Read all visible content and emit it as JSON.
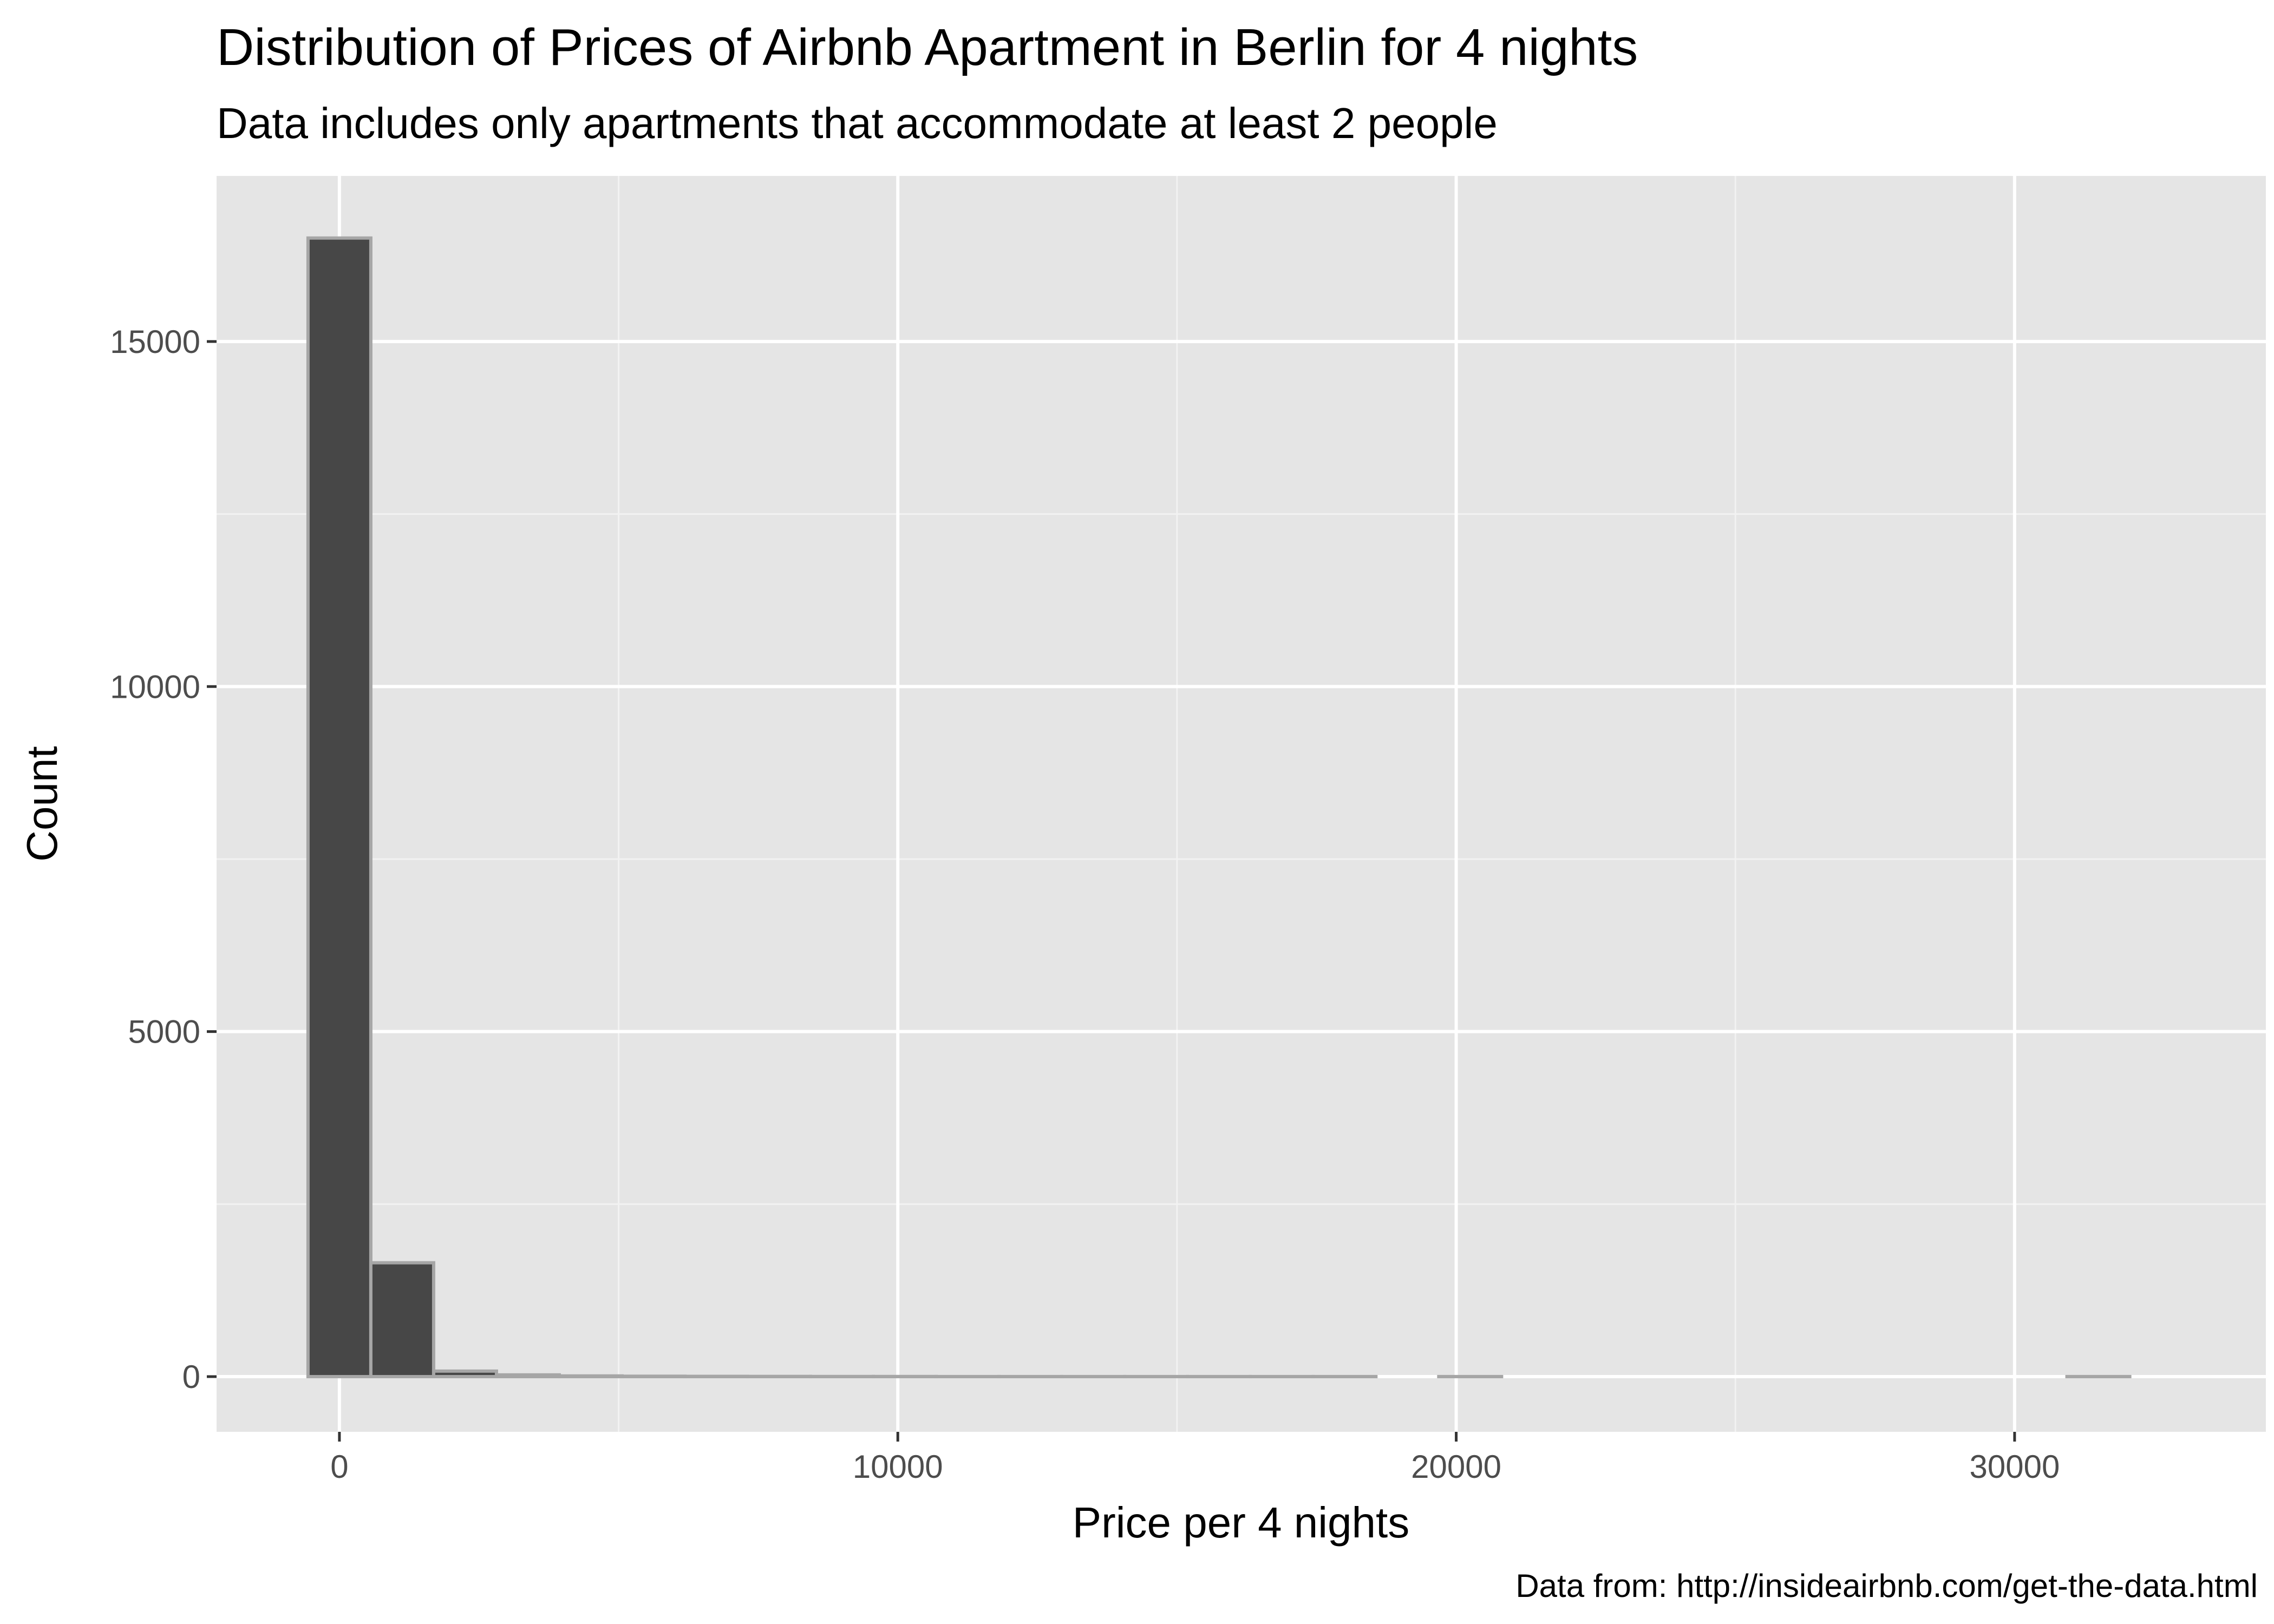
{
  "chart_data": {
    "type": "bar",
    "title": "Distribution of Prices of Airbnb Apartment in Berlin for 4 nights",
    "subtitle": "Data includes only apartments that accommodate at least 2 people",
    "xlabel": "Price per 4 nights",
    "ylabel": "Count",
    "caption": "Data from: http://insideairbnb.com/get-the-data.html",
    "xlim": [
      -2200,
      34500
    ],
    "ylim": [
      -800,
      17400
    ],
    "x_ticks": [
      0,
      10000,
      20000,
      30000
    ],
    "x_tick_labels": [
      "0",
      "10000",
      "20000",
      "30000"
    ],
    "y_ticks": [
      0,
      5000,
      10000,
      15000
    ],
    "y_tick_labels": [
      "0",
      "5000",
      "10000",
      "15000"
    ],
    "bin_width": 1125,
    "bin_centers": [
      0,
      1125,
      2250,
      3375,
      4500,
      5625,
      6750,
      7875,
      9000,
      10125,
      11250,
      12375,
      13500,
      14625,
      15750,
      16875,
      18000,
      19125,
      20250,
      21375,
      22500,
      23625,
      24750,
      25875,
      27000,
      28125,
      29250,
      30375,
      31500
    ],
    "values": [
      16500,
      1650,
      80,
      25,
      10,
      6,
      4,
      3,
      2,
      2,
      1,
      1,
      1,
      1,
      1,
      1,
      1,
      0,
      1,
      0,
      0,
      0,
      0,
      0,
      0,
      0,
      0,
      0,
      1
    ],
    "grid": true,
    "colors": {
      "panel_background": "#e5e5e5",
      "grid_major": "#ffffff",
      "grid_minor": "#f2f2f2",
      "bar_fill": "#474747",
      "bar_outline": "#a6a6a6",
      "tick_mark": "#333333"
    }
  }
}
